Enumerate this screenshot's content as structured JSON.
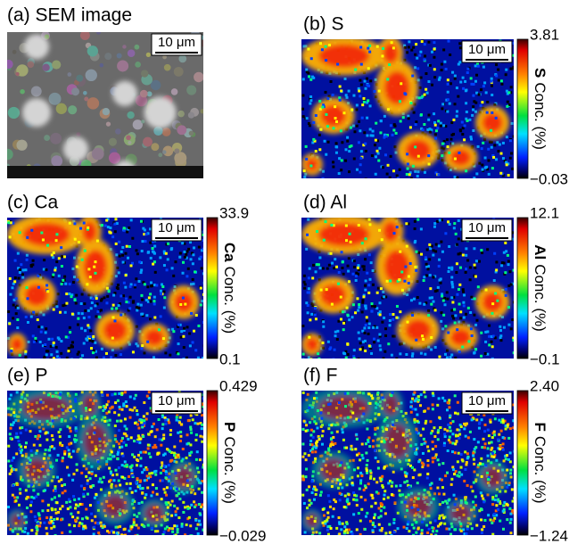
{
  "panels": [
    {
      "title": "(a) SEM image",
      "scale_bar": "10 μm"
    },
    {
      "title": "(b) S",
      "scale_bar": "10 μm",
      "colorbar": {
        "max": "3.81",
        "min": "−0.03",
        "element": "S",
        "unit": "Conc. (%)"
      }
    },
    {
      "title": "(c) Ca",
      "scale_bar": "10 μm",
      "colorbar": {
        "max": "33.9",
        "min": "0.1",
        "element": "Ca",
        "unit": "Conc. (%)"
      }
    },
    {
      "title": "(d) Al",
      "scale_bar": "10 μm",
      "colorbar": {
        "max": "12.1",
        "min": "−0.1",
        "element": "Al",
        "unit": "Conc. (%)"
      }
    },
    {
      "title": "(e) P",
      "scale_bar": "10 μm",
      "colorbar": {
        "max": "0.429",
        "min": "−0.029",
        "element": "P",
        "unit": "Conc. (%)"
      }
    },
    {
      "title": "(f) F",
      "scale_bar": "10 μm",
      "colorbar": {
        "max": "2.40",
        "min": "−1.24",
        "element": "F",
        "unit": "Conc. (%)"
      }
    }
  ]
}
